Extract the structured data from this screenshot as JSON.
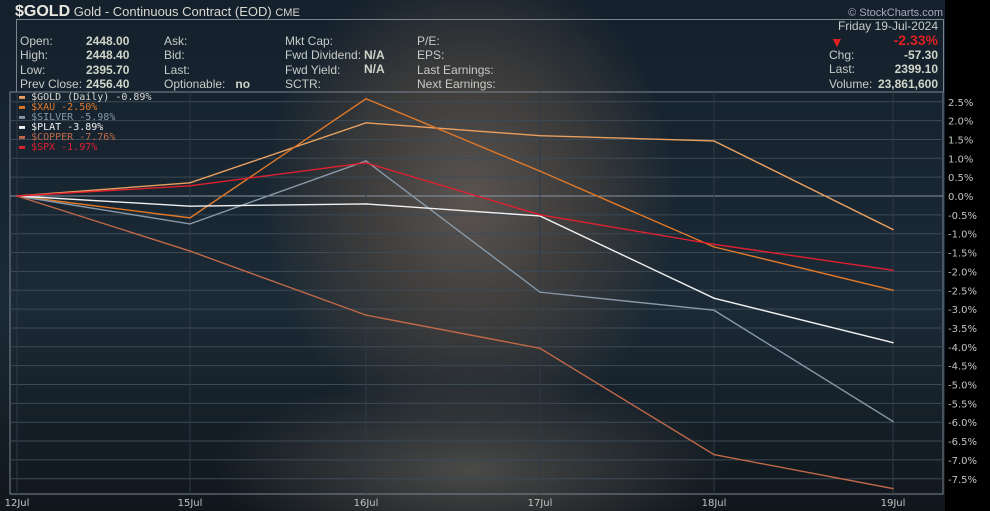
{
  "header": {
    "symbol": "$GOLD",
    "name": "Gold - Continuous Contract (EOD)",
    "exchange": "CME",
    "brand": "© StockCharts.com",
    "open_label": "Open:",
    "open": "2448.00",
    "high_label": "High:",
    "high": "2448.40",
    "low_label": "Low:",
    "low": "2395.70",
    "prev_label": "Prev Close:",
    "prev": "2456.40",
    "ask_label": "Ask:",
    "bid_label": "Bid:",
    "last_label": "Last:",
    "optionable_label": "Optionable:",
    "optionable": "no",
    "mktcap_label": "Mkt Cap:",
    "fwddiv_label": "Fwd Dividend:",
    "fwddiv": "N/A",
    "fwdyield_label": "Fwd Yield:",
    "fwdyield": "N/A",
    "sctr_label": "SCTR:",
    "pe_label": "P/E:",
    "eps_label": "EPS:",
    "lastearn_label": "Last Earnings:",
    "nextearn_label": "Next Earnings:",
    "date": "Friday  19-Jul-2024",
    "pct": "-2.33%",
    "chg_label": "Chg:",
    "chg": "-57.30",
    "last2_label": "Last:",
    "last2": "2399.10",
    "vol_label": "Volume:",
    "volume": "23,861,600",
    "down_color": "#e02020"
  },
  "chart_data": {
    "type": "line",
    "x": [
      "12Jul",
      "15Jul",
      "16Jul",
      "17Jul",
      "18Jul",
      "19Jul"
    ],
    "ylim": [
      -7.8,
      2.7
    ],
    "yticks": [
      2.5,
      2.0,
      1.5,
      1.0,
      0.5,
      0.0,
      -0.5,
      -1.0,
      -1.5,
      -2.0,
      -2.5,
      -3.0,
      -3.5,
      -4.0,
      -4.5,
      -5.0,
      -5.5,
      -6.0,
      -6.5,
      -7.0,
      -7.5
    ],
    "ytick_labels": [
      "2.5%",
      "2.0%",
      "1.5%",
      "1.0%",
      "0.5%",
      "0.0%",
      "-0.5%",
      "-1.0%",
      "-1.5%",
      "-2.0%",
      "-2.5%",
      "-3.0%",
      "-3.5%",
      "-4.0%",
      "-4.5%",
      "-5.0%",
      "-5.5%",
      "-6.0%",
      "-6.5%",
      "-7.0%",
      "-7.5%"
    ],
    "grid": true,
    "legend": "top-left",
    "series": [
      {
        "name": "$GOLD (Daily) -0.89%",
        "color": "#e8a060",
        "values": [
          0,
          0.35,
          1.94,
          1.6,
          1.46,
          -0.89
        ]
      },
      {
        "name": "$XAU -2.50%",
        "color": "#e07828",
        "values": [
          0,
          -0.58,
          2.58,
          0.66,
          -1.35,
          -2.5
        ]
      },
      {
        "name": "$SILVER -5.98%",
        "color": "#8898a8",
        "values": [
          0,
          -0.74,
          0.93,
          -2.55,
          -3.03,
          -5.98
        ]
      },
      {
        "name": "$PLAT -3.89%",
        "color": "#f0f0f0",
        "values": [
          0,
          -0.27,
          -0.21,
          -0.53,
          -2.71,
          -3.89
        ]
      },
      {
        "name": "$COPPER -7.76%",
        "color": "#c06848",
        "values": [
          0,
          -1.46,
          -3.16,
          -4.04,
          -6.86,
          -7.76
        ]
      },
      {
        "name": "$SPX -1.97%",
        "color": "#e02030",
        "values": [
          0,
          0.27,
          0.88,
          -0.5,
          -1.28,
          -1.97
        ]
      }
    ]
  }
}
